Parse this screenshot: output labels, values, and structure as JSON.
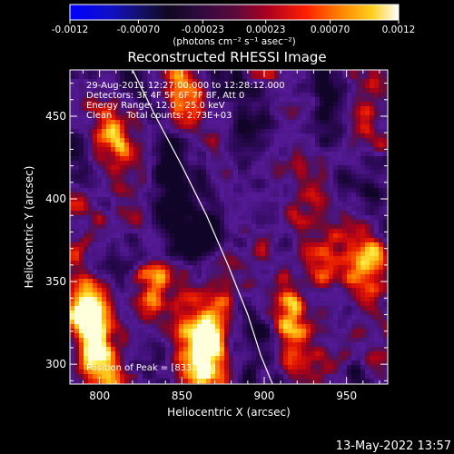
{
  "colorbar": {
    "tick_labels": [
      "-0.0012",
      "-0.00070",
      "-0.00023",
      "0.00023",
      "0.00070",
      "0.0012"
    ],
    "unit_label": "(photons cm⁻² s⁻¹ asec⁻²)",
    "range": [
      -0.0012,
      0.0012
    ]
  },
  "chart_data": {
    "type": "heatmap",
    "title": "Reconstructed RHESSI Image",
    "xlabel": "Heliocentric X (arcsec)",
    "ylabel": "Heliocentric Y (arcsec)",
    "xlim": [
      782,
      975
    ],
    "ylim": [
      288,
      478
    ],
    "x_ticks": [
      "800",
      "850",
      "900",
      "950"
    ],
    "y_ticks": [
      "300",
      "350",
      "400",
      "450"
    ],
    "x_tick_values": [
      800,
      850,
      900,
      950
    ],
    "y_tick_values": [
      300,
      350,
      400,
      450
    ],
    "annotations": [
      "29-Aug-2011 12:27:00.000 to 12:28:12.000",
      "Detectors: 3F 4F 5F 6F 7F 8F, Att 0",
      "Energy Range: 12.0 - 25.0 keV",
      "Clean     Total counts: 2.73E+03"
    ],
    "peak_label": "Position of Peak = [833,333]",
    "peak": [
      833,
      333
    ],
    "limb_curve": {
      "x": [
        820,
        834,
        850,
        865,
        878,
        890,
        898,
        905
      ],
      "y": [
        478,
        450,
        420,
        390,
        360,
        330,
        305,
        288
      ]
    },
    "colormap": "RHESSI color table 3 (blue-purple-red-yellow-white)"
  },
  "footer": {
    "timestamp": "13-May-2022 13:57"
  }
}
